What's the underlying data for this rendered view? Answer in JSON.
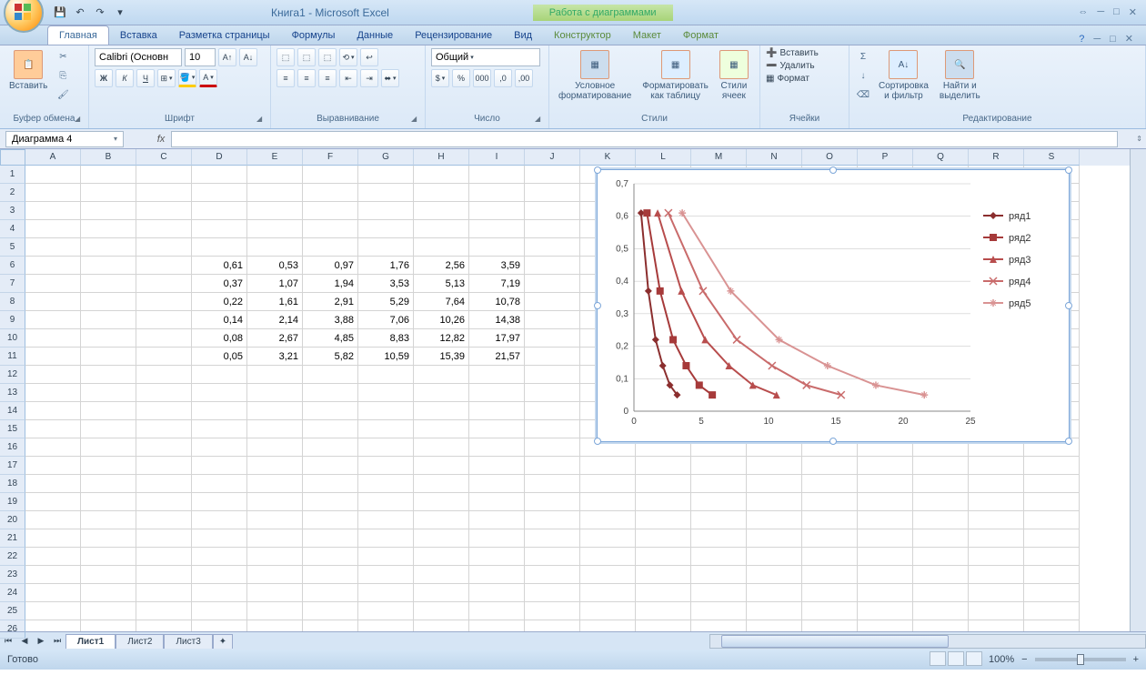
{
  "title": "Книга1 - Microsoft Excel",
  "chart_tools_label": "Работа с диаграммами",
  "tabs": {
    "home": "Главная",
    "insert": "Вставка",
    "layout": "Разметка страницы",
    "formulas": "Формулы",
    "data": "Данные",
    "review": "Рецензирование",
    "view": "Вид",
    "design": "Конструктор",
    "layout2": "Макет",
    "format": "Формат"
  },
  "ribbon": {
    "clipboard": {
      "label": "Буфер обмена",
      "paste": "Вставить"
    },
    "font": {
      "label": "Шрифт",
      "name": "Calibri (Основн",
      "size": "10"
    },
    "align": {
      "label": "Выравнивание"
    },
    "number": {
      "label": "Число",
      "format": "Общий"
    },
    "styles": {
      "label": "Стили",
      "cond": "Условное\nформатирование",
      "table": "Форматировать\nкак таблицу",
      "cell": "Стили\nячеек"
    },
    "cells": {
      "label": "Ячейки",
      "insert": "Вставить",
      "delete": "Удалить",
      "format": "Формат"
    },
    "editing": {
      "label": "Редактирование",
      "sort": "Сортировка\nи фильтр",
      "find": "Найти и\nвыделить"
    }
  },
  "namebox": "Диаграмма 4",
  "columns": [
    "A",
    "B",
    "C",
    "D",
    "E",
    "F",
    "G",
    "H",
    "I",
    "J",
    "K",
    "L",
    "M",
    "N",
    "O",
    "P",
    "Q",
    "R",
    "S"
  ],
  "rows": 26,
  "table": {
    "start_row": 6,
    "start_col": 3,
    "data": [
      [
        "0,61",
        "0,53",
        "0,97",
        "1,76",
        "2,56",
        "3,59"
      ],
      [
        "0,37",
        "1,07",
        "1,94",
        "3,53",
        "5,13",
        "7,19"
      ],
      [
        "0,22",
        "1,61",
        "2,91",
        "5,29",
        "7,64",
        "10,78"
      ],
      [
        "0,14",
        "2,14",
        "3,88",
        "7,06",
        "10,26",
        "14,38"
      ],
      [
        "0,08",
        "2,67",
        "4,85",
        "8,83",
        "12,82",
        "17,97"
      ],
      [
        "0,05",
        "3,21",
        "5,82",
        "10,59",
        "15,39",
        "21,57"
      ]
    ]
  },
  "chart": {
    "type": "line",
    "xlim": [
      0,
      25
    ],
    "xtick_step": 5,
    "ylim": [
      0,
      0.7
    ],
    "ytick_step": 0.1,
    "ytick_labels": [
      "0",
      "0,1",
      "0,2",
      "0,3",
      "0,4",
      "0,5",
      "0,6",
      "0,7"
    ],
    "grid_color": "#bfbfbf",
    "background_color": "#ffffff",
    "series": [
      {
        "name": "ряд1",
        "color": "#8b2e2e",
        "marker": "diamond",
        "x": [
          0.53,
          1.07,
          1.61,
          2.14,
          2.67,
          3.21
        ],
        "y": [
          0.61,
          0.37,
          0.22,
          0.14,
          0.08,
          0.05
        ]
      },
      {
        "name": "ряд2",
        "color": "#a63a3a",
        "marker": "square",
        "x": [
          0.97,
          1.94,
          2.91,
          3.88,
          4.85,
          5.82
        ],
        "y": [
          0.61,
          0.37,
          0.22,
          0.14,
          0.08,
          0.05
        ]
      },
      {
        "name": "ряд3",
        "color": "#b84d4d",
        "marker": "triangle",
        "x": [
          1.76,
          3.53,
          5.29,
          7.06,
          8.83,
          10.59
        ],
        "y": [
          0.61,
          0.37,
          0.22,
          0.14,
          0.08,
          0.05
        ]
      },
      {
        "name": "ряд4",
        "color": "#c96b6b",
        "marker": "x",
        "x": [
          2.56,
          5.13,
          7.64,
          10.26,
          12.82,
          15.39
        ],
        "y": [
          0.61,
          0.37,
          0.22,
          0.14,
          0.08,
          0.05
        ]
      },
      {
        "name": "ряд5",
        "color": "#d99393",
        "marker": "star",
        "x": [
          3.59,
          7.19,
          10.78,
          14.38,
          17.97,
          21.57
        ],
        "y": [
          0.61,
          0.37,
          0.22,
          0.14,
          0.08,
          0.05
        ]
      }
    ]
  },
  "sheets": {
    "s1": "Лист1",
    "s2": "Лист2",
    "s3": "Лист3"
  },
  "status": "Готово",
  "zoom": "100%"
}
